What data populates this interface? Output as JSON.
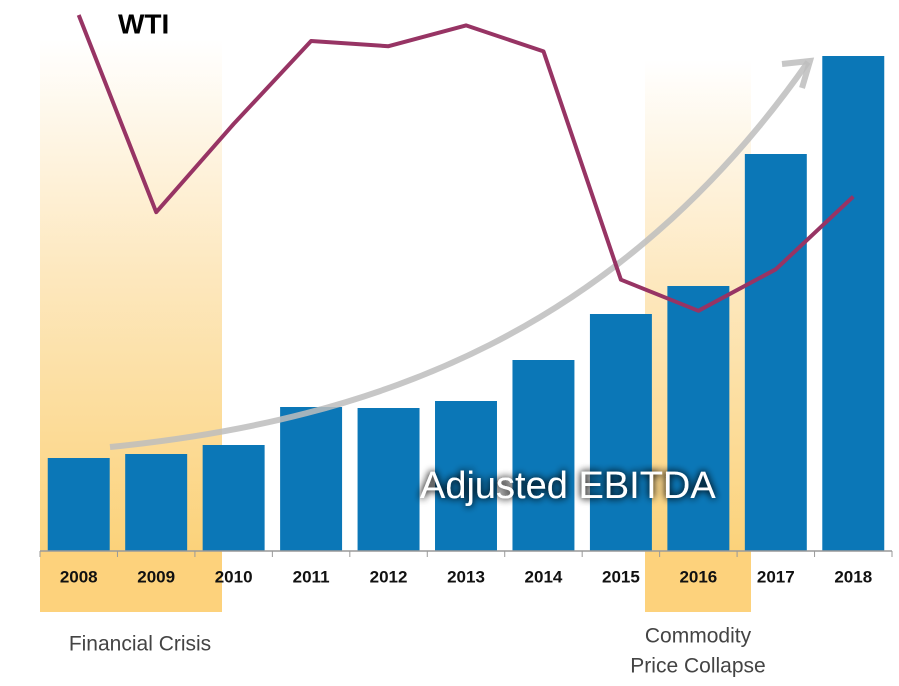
{
  "chart_data": {
    "type": "bar",
    "categories": [
      "2008",
      "2009",
      "2010",
      "2011",
      "2012",
      "2013",
      "2014",
      "2015",
      "2016",
      "2017",
      "2018"
    ],
    "series": [
      {
        "name": "Adjusted EBITDA",
        "color": "#0b77b7",
        "values": [
          93,
          97,
          106,
          144,
          143,
          150,
          191,
          237,
          265,
          397,
          495
        ]
      },
      {
        "name": "WTI",
        "color": "#973464",
        "axis": "y2",
        "type": "line",
        "values": [
          100,
          62,
          79,
          95,
          94,
          98,
          93,
          49,
          43,
          51,
          65
        ]
      }
    ],
    "ylim": [
      0,
      551
    ],
    "y2lim": [
      -3.3,
      102.9
    ],
    "annotations": [
      "Financial Crisis",
      "Commodity",
      "Price Collapse"
    ]
  }
}
